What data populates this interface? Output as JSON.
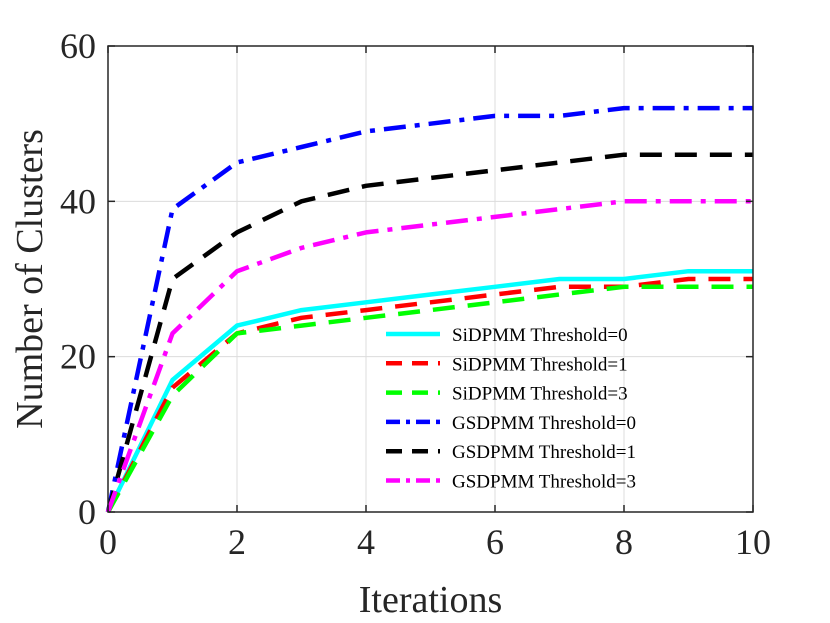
{
  "chart_data": {
    "type": "line",
    "title": "",
    "xlabel": "Iterations",
    "ylabel": "Number of Clusters",
    "xlim": [
      0,
      10
    ],
    "ylim": [
      0,
      60
    ],
    "xticks": [
      0,
      2,
      4,
      6,
      8,
      10
    ],
    "yticks": [
      0,
      20,
      40,
      60
    ],
    "grid": true,
    "legend_position": "bottom-right",
    "x": [
      0,
      1,
      2,
      3,
      4,
      5,
      6,
      7,
      8,
      9,
      10
    ],
    "series": [
      {
        "name": "SiDPMM Threshold=0",
        "color": "#00FFFF",
        "dash": "solid",
        "values": [
          0,
          17,
          24,
          26,
          27,
          28,
          29,
          30,
          30,
          31,
          31
        ]
      },
      {
        "name": "SiDPMM Threshold=1",
        "color": "#FF0000",
        "dash": "dashed",
        "values": [
          0,
          16,
          23,
          25,
          26,
          27,
          28,
          29,
          29,
          30,
          30
        ]
      },
      {
        "name": "SiDPMM Threshold=3",
        "color": "#00FF00",
        "dash": "dashed",
        "values": [
          0,
          15,
          23,
          24,
          25,
          26,
          27,
          28,
          29,
          29,
          29
        ]
      },
      {
        "name": "GSDPMM Threshold=0",
        "color": "#0000FF",
        "dash": "dashdot",
        "values": [
          0,
          39,
          45,
          47,
          49,
          50,
          51,
          51,
          52,
          52,
          52
        ]
      },
      {
        "name": "GSDPMM Threshold=1",
        "color": "#000000",
        "dash": "dashed",
        "values": [
          0,
          30,
          36,
          40,
          42,
          43,
          44,
          45,
          46,
          46,
          46
        ]
      },
      {
        "name": "GSDPMM Threshold=3",
        "color": "#FF00FF",
        "dash": "dashdot",
        "values": [
          0,
          23,
          31,
          34,
          36,
          37,
          38,
          39,
          40,
          40,
          40
        ]
      }
    ]
  }
}
